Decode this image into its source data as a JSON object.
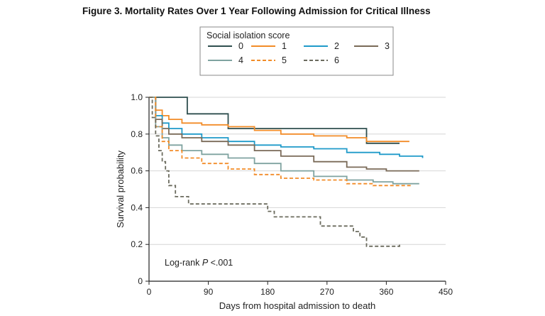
{
  "figure": {
    "title": "Figure 3.  Mortality Rates Over 1 Year Following Admission for Critical Illness"
  },
  "chart_data": {
    "type": "line",
    "subtype": "kaplan-meier-step",
    "xlabel": "Days from hospital admission to death",
    "ylabel": "Survival probability",
    "xlim": [
      0,
      450
    ],
    "ylim": [
      0,
      1.0
    ],
    "xticks": [
      0,
      90,
      180,
      270,
      360,
      450
    ],
    "yticks": [
      0,
      0.2,
      0.4,
      0.6,
      0.8,
      1.0
    ],
    "ytick_labels": [
      "0",
      "0.2",
      "0.4",
      "0.6",
      "0.8",
      "1.0"
    ],
    "grid": "horizontal",
    "legend_title": "Social isolation score",
    "legend_position": "top-center",
    "annotation": {
      "prefix": "Log-rank ",
      "italic": "P",
      "suffix": " <.001"
    },
    "series": [
      {
        "name": "0",
        "color": "#2f4f4f",
        "dash": "solid",
        "x": [
          0,
          58,
          58,
          120,
          120,
          330,
          330,
          380
        ],
        "y": [
          1.0,
          1.0,
          0.91,
          0.91,
          0.83,
          0.83,
          0.75,
          0.75
        ]
      },
      {
        "name": "1",
        "color": "#f28c28",
        "dash": "solid",
        "x": [
          0,
          10,
          20,
          30,
          50,
          80,
          120,
          160,
          200,
          250,
          300,
          330,
          360,
          395
        ],
        "y": [
          1.0,
          0.93,
          0.9,
          0.88,
          0.86,
          0.85,
          0.84,
          0.82,
          0.8,
          0.79,
          0.78,
          0.76,
          0.76,
          0.76
        ]
      },
      {
        "name": "2",
        "color": "#1f9ac9",
        "dash": "solid",
        "x": [
          0,
          10,
          20,
          30,
          50,
          80,
          120,
          160,
          200,
          250,
          300,
          350,
          380,
          415
        ],
        "y": [
          1.0,
          0.9,
          0.86,
          0.83,
          0.8,
          0.78,
          0.76,
          0.74,
          0.73,
          0.72,
          0.7,
          0.69,
          0.68,
          0.67
        ]
      },
      {
        "name": "3",
        "color": "#7a6a58",
        "dash": "solid",
        "x": [
          0,
          10,
          20,
          30,
          50,
          80,
          120,
          160,
          200,
          250,
          300,
          330,
          360,
          410
        ],
        "y": [
          1.0,
          0.88,
          0.83,
          0.8,
          0.78,
          0.76,
          0.74,
          0.71,
          0.68,
          0.65,
          0.62,
          0.61,
          0.6,
          0.6
        ]
      },
      {
        "name": "4",
        "color": "#7fa3a0",
        "dash": "solid",
        "x": [
          0,
          10,
          20,
          30,
          50,
          80,
          120,
          160,
          200,
          250,
          300,
          340,
          370,
          410
        ],
        "y": [
          1.0,
          0.84,
          0.78,
          0.74,
          0.71,
          0.69,
          0.67,
          0.64,
          0.6,
          0.57,
          0.55,
          0.54,
          0.53,
          0.53
        ]
      },
      {
        "name": "5",
        "color": "#f28c28",
        "dash": "dashed",
        "x": [
          0,
          10,
          20,
          30,
          50,
          80,
          120,
          160,
          200,
          250,
          300,
          340,
          380,
          400
        ],
        "y": [
          1.0,
          0.84,
          0.76,
          0.71,
          0.67,
          0.64,
          0.61,
          0.58,
          0.56,
          0.55,
          0.53,
          0.52,
          0.52,
          0.52
        ]
      },
      {
        "name": "6",
        "color": "#6b6b5e",
        "dash": "dashed",
        "x": [
          0,
          5,
          10,
          15,
          20,
          25,
          30,
          40,
          60,
          80,
          120,
          180,
          190,
          260,
          310,
          320,
          330,
          380
        ],
        "y": [
          1.0,
          0.89,
          0.79,
          0.71,
          0.65,
          0.6,
          0.52,
          0.46,
          0.42,
          0.42,
          0.42,
          0.38,
          0.35,
          0.3,
          0.27,
          0.24,
          0.19,
          0.2
        ]
      }
    ]
  }
}
